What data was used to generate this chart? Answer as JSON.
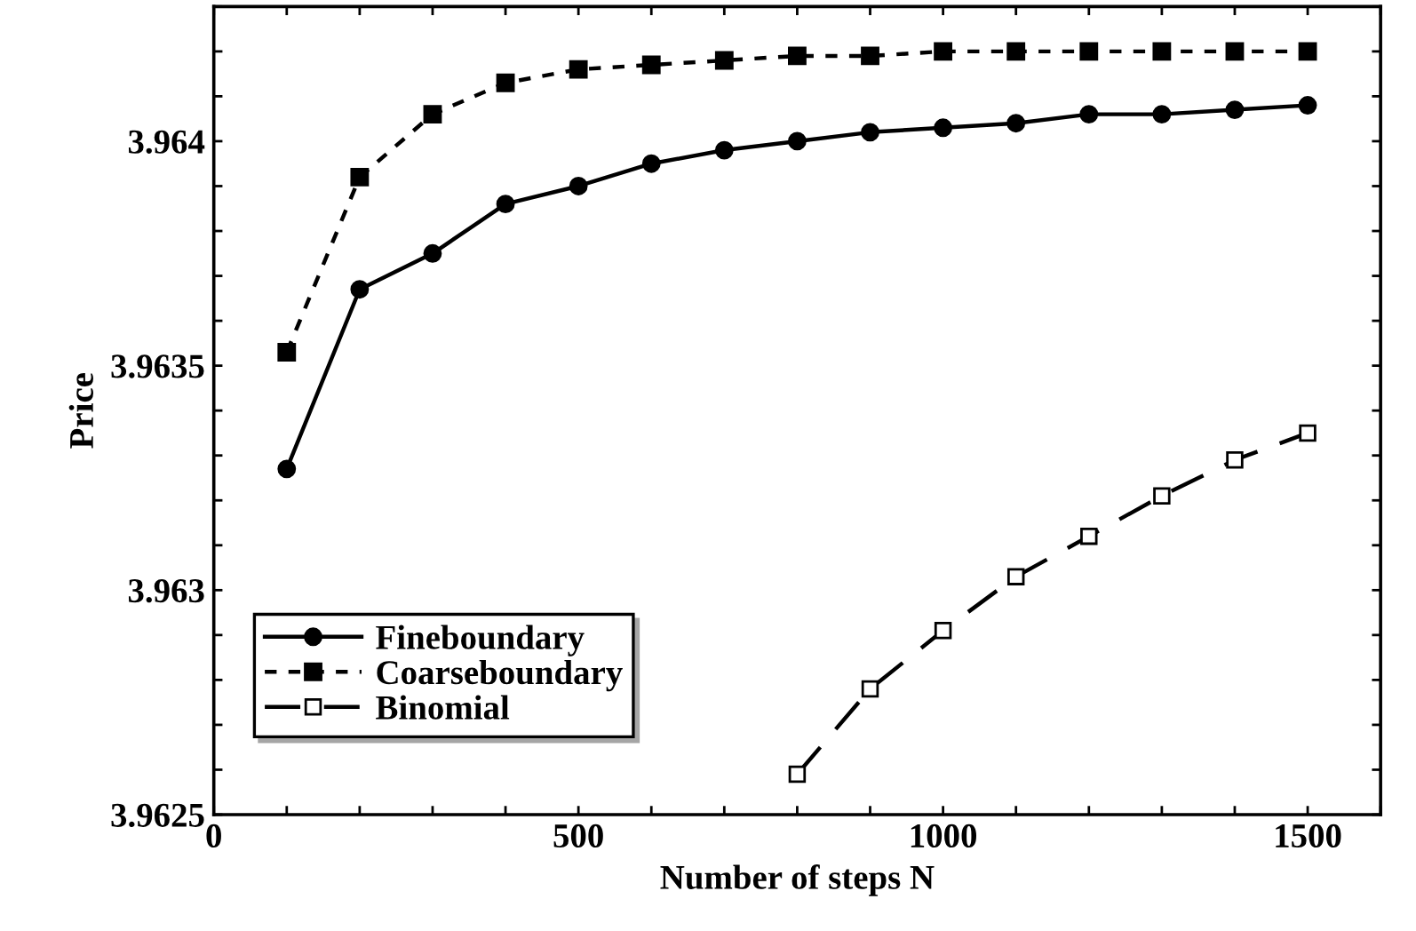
{
  "chart_data": {
    "type": "line",
    "xlabel": "Number of steps N",
    "ylabel": "Price",
    "x": [
      100,
      200,
      300,
      400,
      500,
      600,
      700,
      800,
      900,
      1000,
      1100,
      1200,
      1300,
      1400,
      1500
    ],
    "series": [
      {
        "name": "Fineboundary",
        "color": "#000000",
        "marker": "circle",
        "line_style": "solid",
        "values": [
          3.96327,
          3.96367,
          3.96375,
          3.96386,
          3.9639,
          3.96395,
          3.96398,
          3.964,
          3.96402,
          3.96403,
          3.96404,
          3.96406,
          3.96406,
          3.96407,
          3.96408
        ]
      },
      {
        "name": "Coarseboundary",
        "color": "#000000",
        "marker": "square",
        "line_style": "dotted",
        "values": [
          3.96353,
          3.96392,
          3.96406,
          3.96413,
          3.96416,
          3.96417,
          3.96418,
          3.96419,
          3.96419,
          3.9642,
          3.9642,
          3.9642,
          3.9642,
          3.9642,
          3.9642
        ]
      },
      {
        "name": "Binomial",
        "color": "#000000",
        "marker": "square",
        "line_style": "dashed",
        "x": [
          800,
          900,
          1000,
          1100,
          1200,
          1300,
          1400,
          1500
        ],
        "values": [
          3.96259,
          3.96278,
          3.96291,
          3.96303,
          3.96312,
          3.96321,
          3.96329,
          3.96335
        ]
      }
    ],
    "xlim": [
      0,
      1600
    ],
    "ylim": [
      3.9625,
      3.9643
    ],
    "xticks": [
      0,
      {
        "value": 100,
        "label": null
      },
      {
        "value": 200,
        "label": null
      },
      {
        "value": 300,
        "label": null
      },
      {
        "value": 400,
        "label": null
      },
      500,
      {
        "value": 600,
        "label": null
      },
      {
        "value": 700,
        "label": null
      },
      {
        "value": 800,
        "label": null
      },
      {
        "value": 900,
        "label": null
      },
      1000,
      {
        "value": 1100,
        "label": null
      },
      {
        "value": 1200,
        "label": null
      },
      {
        "value": 1300,
        "label": null
      },
      {
        "value": 1400,
        "label": null
      },
      1500,
      {
        "value": 1600,
        "label": null
      }
    ],
    "yticks": [
      3.9625,
      {
        "value": 3.9626,
        "label": null
      },
      {
        "value": 3.9627,
        "label": null
      },
      {
        "value": 3.9628,
        "label": null
      },
      {
        "value": 3.9629,
        "label": null
      },
      3.963,
      {
        "value": 3.9631,
        "label": null
      },
      {
        "value": 3.9632,
        "label": null
      },
      {
        "value": 3.9633,
        "label": null
      },
      {
        "value": 3.9634,
        "label": null
      },
      3.9635,
      {
        "value": 3.9636,
        "label": null
      },
      {
        "value": 3.9637,
        "label": null
      },
      {
        "value": 3.9638,
        "label": null
      },
      {
        "value": 3.9639,
        "label": null
      },
      3.964,
      {
        "value": 3.9641,
        "label": null
      },
      {
        "value": 3.9642,
        "label": null
      },
      {
        "value": 3.9643,
        "label": null
      }
    ],
    "grid": false,
    "legend": "bottom left"
  }
}
